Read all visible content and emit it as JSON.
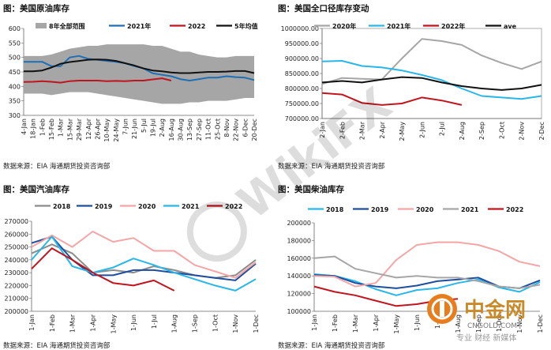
{
  "chart_data": [
    {
      "id": "crude",
      "type": "line",
      "title": "图：美国原油库存",
      "source": "数据来源：EIA   海通期货投资咨询部",
      "categories": [
        "4-Jan",
        "18-Jan",
        "1-Feb",
        "15-Feb",
        "1-Mar",
        "15-Mar",
        "29-Mar",
        "12-Apr",
        "26-Apr",
        "10-May",
        "24-May",
        "7-Jun",
        "21-Jun",
        "5-Jul",
        "19-Jul",
        "2-Aug",
        "16-Aug",
        "30-Aug",
        "13-Sep",
        "27-Sep",
        "11-Oct",
        "25-Oct",
        "8-Nov",
        "22-Nov",
        "6-Dec",
        "20-Dec"
      ],
      "ylim": [
        300,
        600
      ],
      "yticks": [
        300,
        350,
        400,
        450,
        500,
        550,
        600
      ],
      "band": {
        "name": "8年全部范围",
        "color": "#a6a6a6",
        "upper": [
          505,
          505,
          505,
          510,
          520,
          530,
          535,
          540,
          540,
          545,
          545,
          545,
          545,
          545,
          540,
          540,
          530,
          520,
          520,
          510,
          505,
          500,
          500,
          505,
          505,
          505
        ],
        "lower": [
          375,
          375,
          375,
          370,
          375,
          380,
          380,
          380,
          375,
          370,
          365,
          360,
          355,
          350,
          345,
          340,
          340,
          340,
          345,
          345,
          350,
          350,
          350,
          355,
          360,
          360
        ]
      },
      "series": [
        {
          "name": "2021年",
          "color": "#1f6fb5",
          "width": 2,
          "values": [
            485,
            485,
            485,
            470,
            470,
            500,
            505,
            495,
            492,
            488,
            485,
            480,
            470,
            462,
            445,
            440,
            435,
            425,
            420,
            425,
            430,
            430,
            435,
            432,
            430,
            422
          ]
        },
        {
          "name": "2022",
          "color": "#c0151f",
          "width": 2,
          "values": [
            415,
            416,
            418,
            416,
            413,
            418,
            420,
            420,
            420,
            418,
            419,
            418,
            420,
            420,
            424,
            428,
            420,
            null,
            null,
            null,
            null,
            null,
            null,
            null,
            null,
            null
          ]
        },
        {
          "name": "5年均值",
          "color": "#111111",
          "width": 2,
          "values": [
            452,
            452,
            455,
            465,
            478,
            484,
            488,
            492,
            493,
            492,
            488,
            480,
            472,
            462,
            455,
            452,
            448,
            446,
            446,
            448,
            450,
            450,
            451,
            453,
            453,
            446
          ]
        }
      ]
    },
    {
      "id": "total",
      "type": "line",
      "title": "图：美国全口径库存变动",
      "source": "数据来源：EIA   海通期货投资咨询部",
      "categories": [
        "2-Jan",
        "2-Feb",
        "2-Mar",
        "2-Apr",
        "2-May",
        "2-Jun",
        "2-Jul",
        "2-Aug",
        "2-Sep",
        "2-Oct",
        "2-Nov",
        "2-Dec"
      ],
      "ylim": [
        700000,
        1000000
      ],
      "yticks": [
        700000,
        750000,
        800000,
        850000,
        900000,
        950000,
        1000000
      ],
      "ytick_labels": [
        "700000.00",
        "750000.00",
        "800000.00",
        "850000.00",
        "900000.00",
        "950000.00",
        "1000000.00"
      ],
      "series": [
        {
          "name": "2020年",
          "color": "#a6a6a6",
          "width": 2,
          "values": [
            815000,
            835000,
            832000,
            830000,
            900000,
            965000,
            958000,
            945000,
            910000,
            885000,
            865000,
            890000
          ]
        },
        {
          "name": "2021年",
          "color": "#29b6e8",
          "width": 2,
          "values": [
            890000,
            892000,
            875000,
            870000,
            860000,
            845000,
            828000,
            800000,
            775000,
            770000,
            765000,
            775000
          ]
        },
        {
          "name": "2022年",
          "color": "#c0151f",
          "width": 2,
          "values": [
            785000,
            780000,
            752000,
            745000,
            750000,
            770000,
            760000,
            745000,
            null,
            null,
            null,
            null
          ]
        },
        {
          "name": "ave",
          "color": "#111111",
          "width": 2,
          "values": [
            820000,
            825000,
            820000,
            830000,
            838000,
            835000,
            820000,
            808000,
            800000,
            795000,
            800000,
            812000
          ]
        }
      ]
    },
    {
      "id": "gasoline",
      "type": "line",
      "title": "图：美国汽油库存",
      "source": "数据来源：EIA   海通期货投资咨询部",
      "categories": [
        "1-Jan",
        "1-Feb",
        "1-Mar",
        "1-Apr",
        "1-May",
        "1-Jun",
        "1-Jul",
        "1-Aug",
        "1-Sep",
        "1-Oct",
        "1-Nov",
        "1-Dec"
      ],
      "ylim": [
        200000,
        270000
      ],
      "yticks": [
        200000,
        210000,
        220000,
        230000,
        240000,
        250000,
        260000,
        270000
      ],
      "series": [
        {
          "name": "2018",
          "color": "#8c8c8c",
          "width": 2,
          "values": [
            245000,
            252000,
            245000,
            230000,
            232000,
            230000,
            235000,
            232000,
            228000,
            226000,
            228000,
            240000
          ]
        },
        {
          "name": "2019",
          "color": "#1f4e9e",
          "width": 2,
          "values": [
            253000,
            258000,
            240000,
            228000,
            228000,
            232000,
            232000,
            230000,
            228000,
            226000,
            224000,
            237000
          ]
        },
        {
          "name": "2020",
          "color": "#f4a6a6",
          "width": 2,
          "values": [
            250000,
            259000,
            250000,
            262000,
            254000,
            257000,
            247000,
            247000,
            236000,
            231000,
            226000,
            238000
          ]
        },
        {
          "name": "2021",
          "color": "#29b6e8",
          "width": 2,
          "values": [
            240000,
            258000,
            235000,
            230000,
            234000,
            241000,
            236000,
            230000,
            225000,
            220000,
            216000,
            225000
          ]
        },
        {
          "name": "2022",
          "color": "#c0151f",
          "width": 2,
          "values": [
            233000,
            249000,
            240000,
            230000,
            222000,
            220000,
            224000,
            216000,
            null,
            null,
            null,
            null
          ]
        }
      ]
    },
    {
      "id": "diesel",
      "type": "line",
      "title": "图：美国柴油库存",
      "source": "数据来源：EIA   海通期货投资咨询部",
      "categories": [
        "1-Jan",
        "1-Feb",
        "1-Mar",
        "1-Apr",
        "1-May",
        "1-Jun",
        "1-Jul",
        "1-Aug",
        "1-Sep",
        "1-Oct",
        "1-Nov",
        "1-Dec"
      ],
      "ylim": [
        100000,
        200000
      ],
      "yticks": [
        100000,
        120000,
        140000,
        160000,
        180000,
        200000
      ],
      "series": [
        {
          "name": "2018",
          "color": "#29b6e8",
          "width": 2,
          "values": [
            142000,
            140000,
            134000,
            125000,
            118000,
            124000,
            126000,
            132000,
            136000,
            127000,
            122000,
            133000
          ]
        },
        {
          "name": "2019",
          "color": "#1f4e9e",
          "width": 2,
          "values": [
            141000,
            140000,
            132000,
            128000,
            126000,
            129000,
            134000,
            136000,
            138000,
            128000,
            126000,
            135000
          ]
        },
        {
          "name": "2020",
          "color": "#f4a6a6",
          "width": 2,
          "values": [
            140000,
            139000,
            128000,
            132000,
            158000,
            175000,
            178000,
            178000,
            175000,
            168000,
            156000,
            151000
          ]
        },
        {
          "name": "2021",
          "color": "#a6a6a6",
          "width": 2,
          "values": [
            160000,
            162000,
            148000,
            143000,
            138000,
            140000,
            138000,
            138000,
            134000,
            128000,
            126000,
            130000
          ]
        },
        {
          "name": "2022",
          "color": "#c0151f",
          "width": 2,
          "values": [
            128000,
            122000,
            118000,
            112000,
            106000,
            108000,
            112000,
            114000,
            null,
            null,
            null,
            null
          ]
        }
      ]
    }
  ],
  "watermark": "WikiFX",
  "logo": {
    "name": "中金网",
    "domain": "CNGOLD.COM",
    "slogan": "专业 财经 新媒体"
  }
}
